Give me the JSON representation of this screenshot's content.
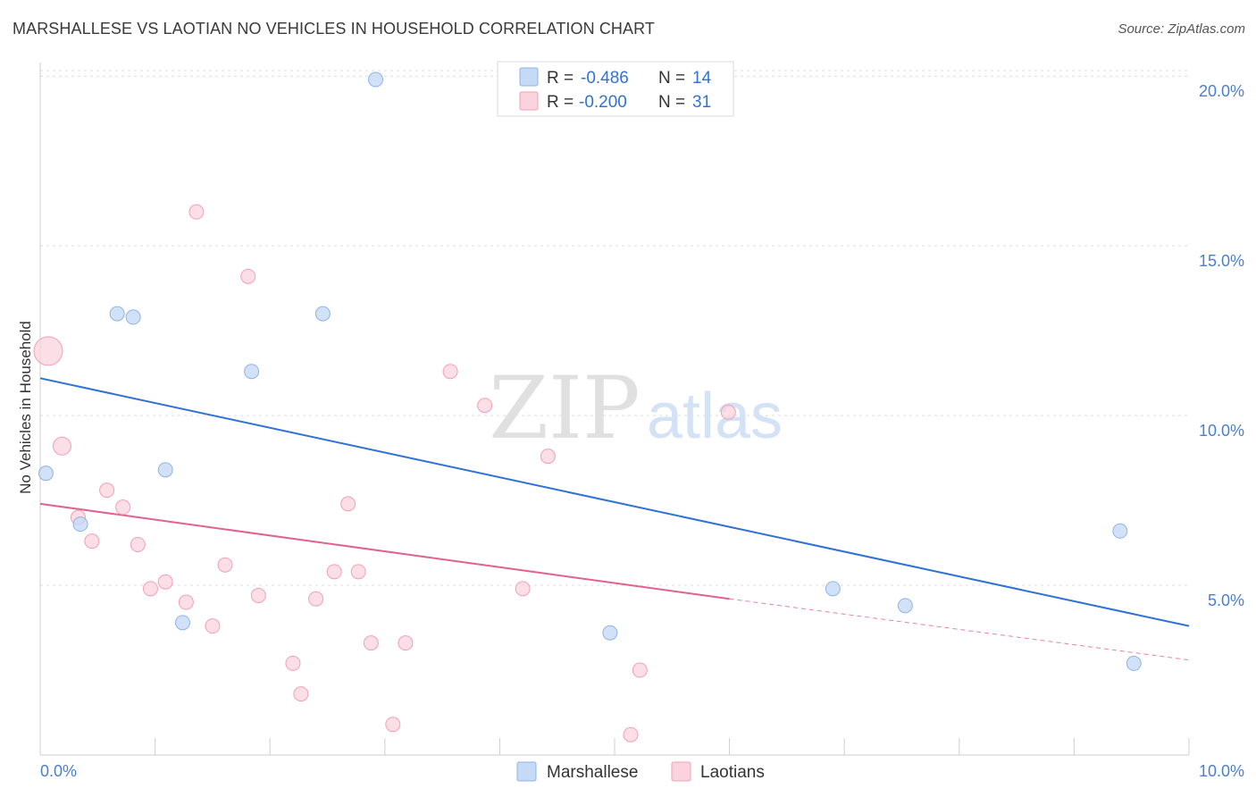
{
  "header": {
    "title": "MARSHALLESE VS LAOTIAN NO VEHICLES IN HOUSEHOLD CORRELATION CHART",
    "source": "Source: ZipAtlas.com"
  },
  "watermark": {
    "zip": "ZIP",
    "atlas": "atlas"
  },
  "legend_box": {
    "rows": [
      {
        "r_label": "R =",
        "r_value": "-0.486",
        "n_label": "N =",
        "n_value": "14",
        "color": "#a9c8f2"
      },
      {
        "r_label": "R =",
        "r_value": "-0.200",
        "n_label": "N =",
        "n_value": "31",
        "color": "#f7bfd0"
      }
    ]
  },
  "colors": {
    "marshallese_fill": "#c5daf5",
    "marshallese_stroke": "#8fb3e8",
    "marshallese_line": "#2f72d6",
    "laotians_fill": "#fbd3de",
    "laotians_stroke": "#f0a0b8",
    "laotians_line": "#e0628e",
    "tick_text": "#4a7fd0"
  },
  "chart_data": {
    "type": "scatter",
    "title": "MARSHALLESE VS LAOTIAN NO VEHICLES IN HOUSEHOLD CORRELATION CHART",
    "xlabel": "",
    "ylabel": "No Vehicles in Household",
    "xlim": [
      0,
      10
    ],
    "ylim": [
      0,
      20.4
    ],
    "x_tick_labels": [
      "0.0%",
      "10.0%"
    ],
    "y_ticks": [
      5,
      10,
      15,
      20
    ],
    "y_tick_labels": [
      "5.0%",
      "10.0%",
      "15.0%",
      "20.0%"
    ],
    "grid": true,
    "legend": [
      "Marshallese",
      "Laotians"
    ],
    "series": [
      {
        "name": "Marshallese",
        "points": [
          {
            "x": 0.05,
            "y": 8.3
          },
          {
            "x": 0.35,
            "y": 6.8
          },
          {
            "x": 0.67,
            "y": 13.0
          },
          {
            "x": 0.81,
            "y": 12.9
          },
          {
            "x": 1.09,
            "y": 8.4
          },
          {
            "x": 1.24,
            "y": 3.9
          },
          {
            "x": 1.84,
            "y": 11.3
          },
          {
            "x": 2.46,
            "y": 13.0
          },
          {
            "x": 2.92,
            "y": 19.9
          },
          {
            "x": 4.96,
            "y": 3.6
          },
          {
            "x": 6.9,
            "y": 4.9
          },
          {
            "x": 7.53,
            "y": 4.4
          },
          {
            "x": 9.4,
            "y": 6.6
          },
          {
            "x": 9.52,
            "y": 2.7
          }
        ],
        "trend": {
          "x": [
            0,
            10
          ],
          "y": [
            11.1,
            3.8
          ]
        }
      },
      {
        "name": "Laotians",
        "points": [
          {
            "x": 0.07,
            "y": 11.9,
            "size": "large"
          },
          {
            "x": 0.19,
            "y": 9.1
          },
          {
            "x": 0.33,
            "y": 7.0
          },
          {
            "x": 0.45,
            "y": 6.3
          },
          {
            "x": 0.58,
            "y": 7.8
          },
          {
            "x": 0.72,
            "y": 7.3
          },
          {
            "x": 0.85,
            "y": 6.2
          },
          {
            "x": 0.96,
            "y": 4.9
          },
          {
            "x": 1.09,
            "y": 5.1
          },
          {
            "x": 1.27,
            "y": 4.5
          },
          {
            "x": 1.36,
            "y": 16.0
          },
          {
            "x": 1.5,
            "y": 3.8
          },
          {
            "x": 1.61,
            "y": 5.6
          },
          {
            "x": 1.81,
            "y": 14.1
          },
          {
            "x": 1.9,
            "y": 4.7
          },
          {
            "x": 2.2,
            "y": 2.7
          },
          {
            "x": 2.27,
            "y": 1.8
          },
          {
            "x": 2.4,
            "y": 4.6
          },
          {
            "x": 2.56,
            "y": 5.4
          },
          {
            "x": 2.68,
            "y": 7.4
          },
          {
            "x": 2.77,
            "y": 5.4
          },
          {
            "x": 2.88,
            "y": 3.3
          },
          {
            "x": 3.07,
            "y": 0.9
          },
          {
            "x": 3.18,
            "y": 3.3
          },
          {
            "x": 3.57,
            "y": 11.3
          },
          {
            "x": 3.87,
            "y": 10.3
          },
          {
            "x": 4.2,
            "y": 4.9
          },
          {
            "x": 4.42,
            "y": 8.8
          },
          {
            "x": 5.14,
            "y": 0.6
          },
          {
            "x": 5.22,
            "y": 2.5
          },
          {
            "x": 5.99,
            "y": 10.1
          }
        ],
        "trend": {
          "x": [
            0,
            6.0
          ],
          "y": [
            7.4,
            4.6
          ]
        },
        "trend_extension": {
          "x": [
            6.0,
            10
          ],
          "y": [
            4.6,
            2.8
          ]
        }
      }
    ]
  }
}
